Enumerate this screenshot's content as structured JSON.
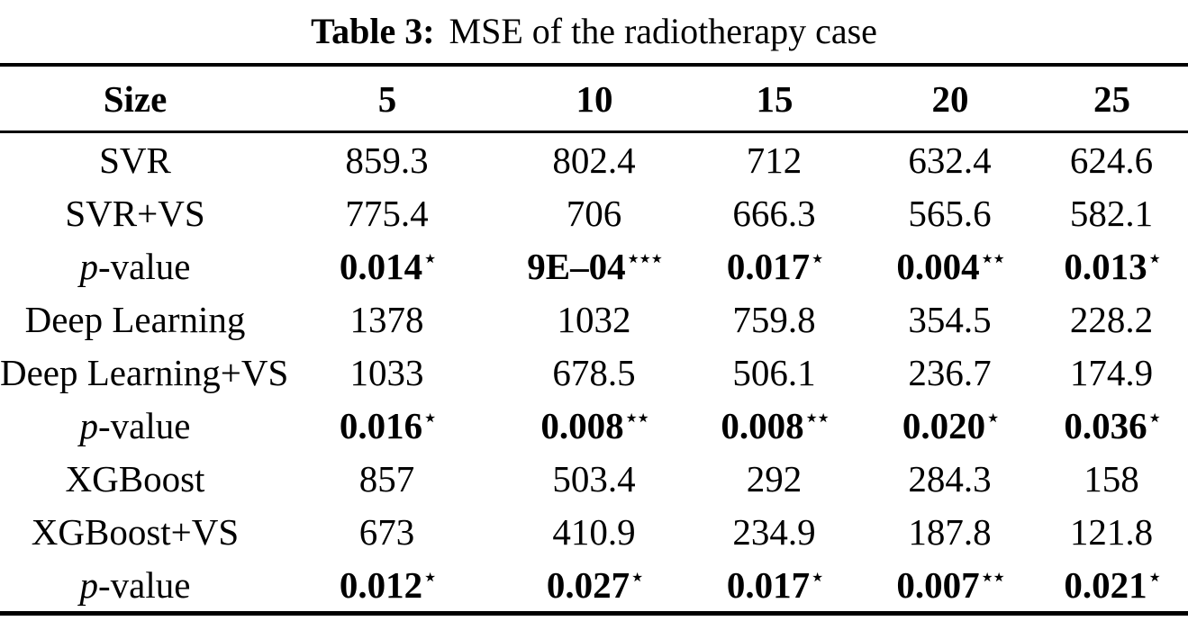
{
  "caption": {
    "label": "Table 3:",
    "text": "MSE of the radiotherapy case"
  },
  "table": {
    "columns": [
      "Size",
      "5",
      "10",
      "15",
      "20",
      "25"
    ],
    "rows": [
      {
        "label_italic": "",
        "label": "SVR",
        "pvalue": false,
        "values": [
          [
            "859.3",
            ""
          ],
          [
            "802.4",
            ""
          ],
          [
            "712",
            ""
          ],
          [
            "632.4",
            ""
          ],
          [
            "624.6",
            ""
          ]
        ]
      },
      {
        "label_italic": "",
        "label": "SVR+VS",
        "pvalue": false,
        "values": [
          [
            "775.4",
            ""
          ],
          [
            "706",
            ""
          ],
          [
            "666.3",
            ""
          ],
          [
            "565.6",
            ""
          ],
          [
            "582.1",
            ""
          ]
        ]
      },
      {
        "label_italic": "p",
        "label": "-value",
        "pvalue": true,
        "values": [
          [
            "0.014",
            "⋆"
          ],
          [
            "9E–04",
            "⋆⋆⋆"
          ],
          [
            "0.017",
            "⋆"
          ],
          [
            "0.004",
            "⋆⋆"
          ],
          [
            "0.013",
            "⋆"
          ]
        ]
      },
      {
        "label_italic": "",
        "label": "Deep Learning",
        "pvalue": false,
        "values": [
          [
            "1378",
            ""
          ],
          [
            "1032",
            ""
          ],
          [
            "759.8",
            ""
          ],
          [
            "354.5",
            ""
          ],
          [
            "228.2",
            ""
          ]
        ]
      },
      {
        "label_italic": "",
        "label": "Deep Learning+VS",
        "pvalue": false,
        "values": [
          [
            "1033",
            ""
          ],
          [
            "678.5",
            ""
          ],
          [
            "506.1",
            ""
          ],
          [
            "236.7",
            ""
          ],
          [
            "174.9",
            ""
          ]
        ]
      },
      {
        "label_italic": "p",
        "label": "-value",
        "pvalue": true,
        "values": [
          [
            "0.016",
            "⋆"
          ],
          [
            "0.008",
            "⋆⋆"
          ],
          [
            "0.008",
            "⋆⋆"
          ],
          [
            "0.020",
            "⋆"
          ],
          [
            "0.036",
            "⋆"
          ]
        ]
      },
      {
        "label_italic": "",
        "label": "XGBoost",
        "pvalue": false,
        "values": [
          [
            "857",
            ""
          ],
          [
            "503.4",
            ""
          ],
          [
            "292",
            ""
          ],
          [
            "284.3",
            ""
          ],
          [
            "158",
            ""
          ]
        ]
      },
      {
        "label_italic": "",
        "label": "XGBoost+VS",
        "pvalue": false,
        "values": [
          [
            "673",
            ""
          ],
          [
            "410.9",
            ""
          ],
          [
            "234.9",
            ""
          ],
          [
            "187.8",
            ""
          ],
          [
            "121.8",
            ""
          ]
        ]
      },
      {
        "label_italic": "p",
        "label": "-value",
        "pvalue": true,
        "values": [
          [
            "0.012",
            "⋆"
          ],
          [
            "0.027",
            "⋆"
          ],
          [
            "0.017",
            "⋆"
          ],
          [
            "0.007",
            "⋆⋆"
          ],
          [
            "0.021",
            "⋆"
          ]
        ]
      }
    ]
  },
  "colors": {
    "text": "#000000",
    "background": "#ffffff",
    "rule": "#000000"
  }
}
